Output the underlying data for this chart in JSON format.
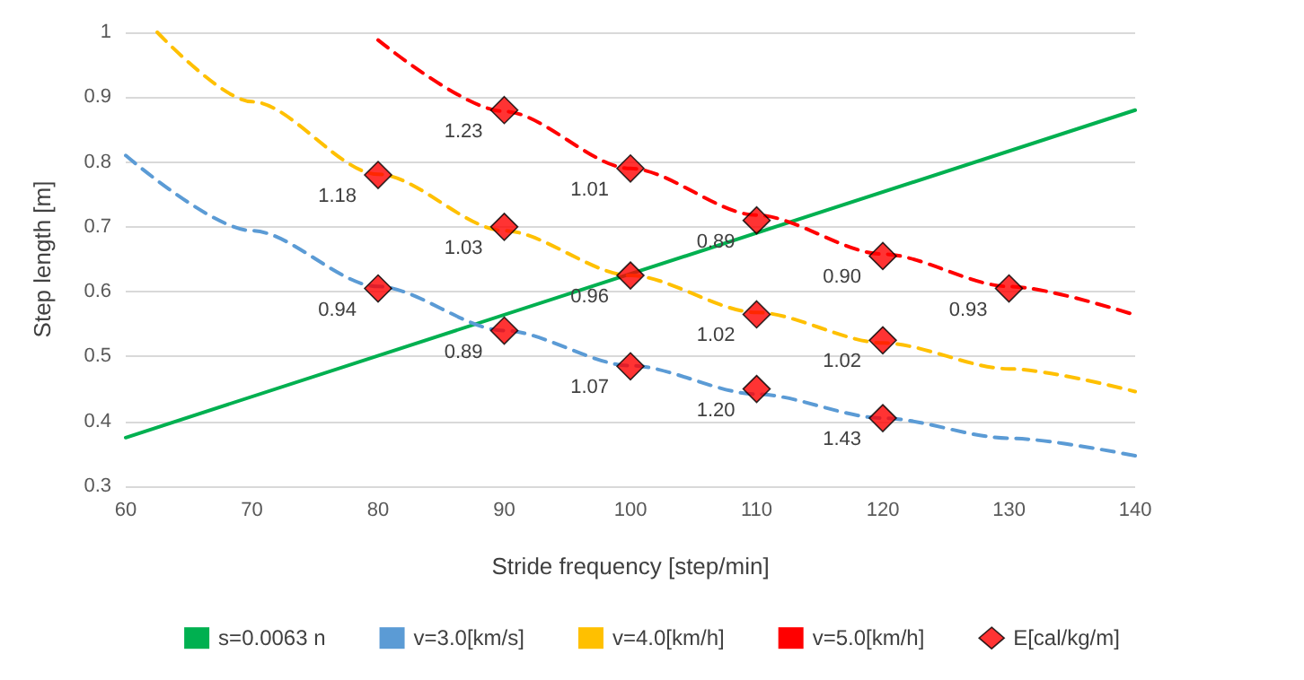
{
  "chart_data": {
    "type": "line",
    "xlabel": "Stride frequency [step/min]",
    "ylabel": "Step length [m]",
    "xlim": [
      60,
      140
    ],
    "xticks": [
      60,
      70,
      80,
      90,
      100,
      110,
      120,
      130,
      140
    ],
    "ylim": [
      0.3,
      1.0
    ],
    "yticks": [
      0.3,
      0.4,
      0.5,
      0.6,
      0.7,
      0.8,
      0.9,
      1.0
    ],
    "grid": "y",
    "legend": "bottom",
    "series": [
      {
        "name": "s=0.0063 n",
        "color": "#00b050",
        "line_style": "solid",
        "x": [
          60,
          140
        ],
        "values": [
          0.375,
          0.88
        ]
      },
      {
        "name": "v=3.0[km/s]",
        "color": "#5b9bd5",
        "line_style": "dashed",
        "x": [
          60,
          70,
          80,
          90,
          100,
          110,
          120,
          130,
          140
        ],
        "values": [
          0.81,
          0.694,
          0.608,
          0.54,
          0.486,
          0.442,
          0.405,
          0.374,
          0.347
        ]
      },
      {
        "name": "v=4.0[km/h]",
        "color": "#ffc000",
        "line_style": "dashed",
        "x": [
          62.5,
          70,
          80,
          90,
          100,
          110,
          120,
          130,
          140
        ],
        "values": [
          1.0,
          0.893,
          0.781,
          0.694,
          0.625,
          0.568,
          0.521,
          0.481,
          0.446
        ]
      },
      {
        "name": "v=5.0[km/h]",
        "color": "#ff0000",
        "line_style": "dashed",
        "x": [
          80,
          90,
          100,
          110,
          120,
          130,
          140
        ],
        "values": [
          0.988,
          0.878,
          0.79,
          0.718,
          0.658,
          0.608,
          0.564
        ]
      },
      {
        "name": "E[cal/kg/m]",
        "type": "scatter",
        "color": "#ff0000",
        "marker": "diamond",
        "x": [
          80,
          80,
          90,
          90,
          90,
          100,
          100,
          100,
          110,
          110,
          110,
          120,
          120,
          120,
          130
        ],
        "values": [
          0.605,
          0.78,
          0.88,
          0.7,
          0.54,
          0.79,
          0.625,
          0.485,
          0.71,
          0.565,
          0.45,
          0.655,
          0.525,
          0.405,
          0.605
        ]
      }
    ],
    "annotations": [
      {
        "text": "0.94",
        "x": 80,
        "y": 0.605
      },
      {
        "text": "1.18",
        "x": 80,
        "y": 0.78
      },
      {
        "text": "1.23",
        "x": 90,
        "y": 0.88
      },
      {
        "text": "1.03",
        "x": 90,
        "y": 0.7
      },
      {
        "text": "0.89",
        "x": 90,
        "y": 0.54
      },
      {
        "text": "1.01",
        "x": 100,
        "y": 0.79
      },
      {
        "text": "0.96",
        "x": 100,
        "y": 0.625
      },
      {
        "text": "1.07",
        "x": 100,
        "y": 0.485
      },
      {
        "text": "0.89",
        "x": 110,
        "y": 0.71
      },
      {
        "text": "1.02",
        "x": 110,
        "y": 0.565
      },
      {
        "text": "1.20",
        "x": 110,
        "y": 0.45
      },
      {
        "text": "0.90",
        "x": 120,
        "y": 0.655
      },
      {
        "text": "1.02",
        "x": 120,
        "y": 0.525
      },
      {
        "text": "1.43",
        "x": 120,
        "y": 0.405
      },
      {
        "text": "0.93",
        "x": 130,
        "y": 0.605
      }
    ]
  }
}
